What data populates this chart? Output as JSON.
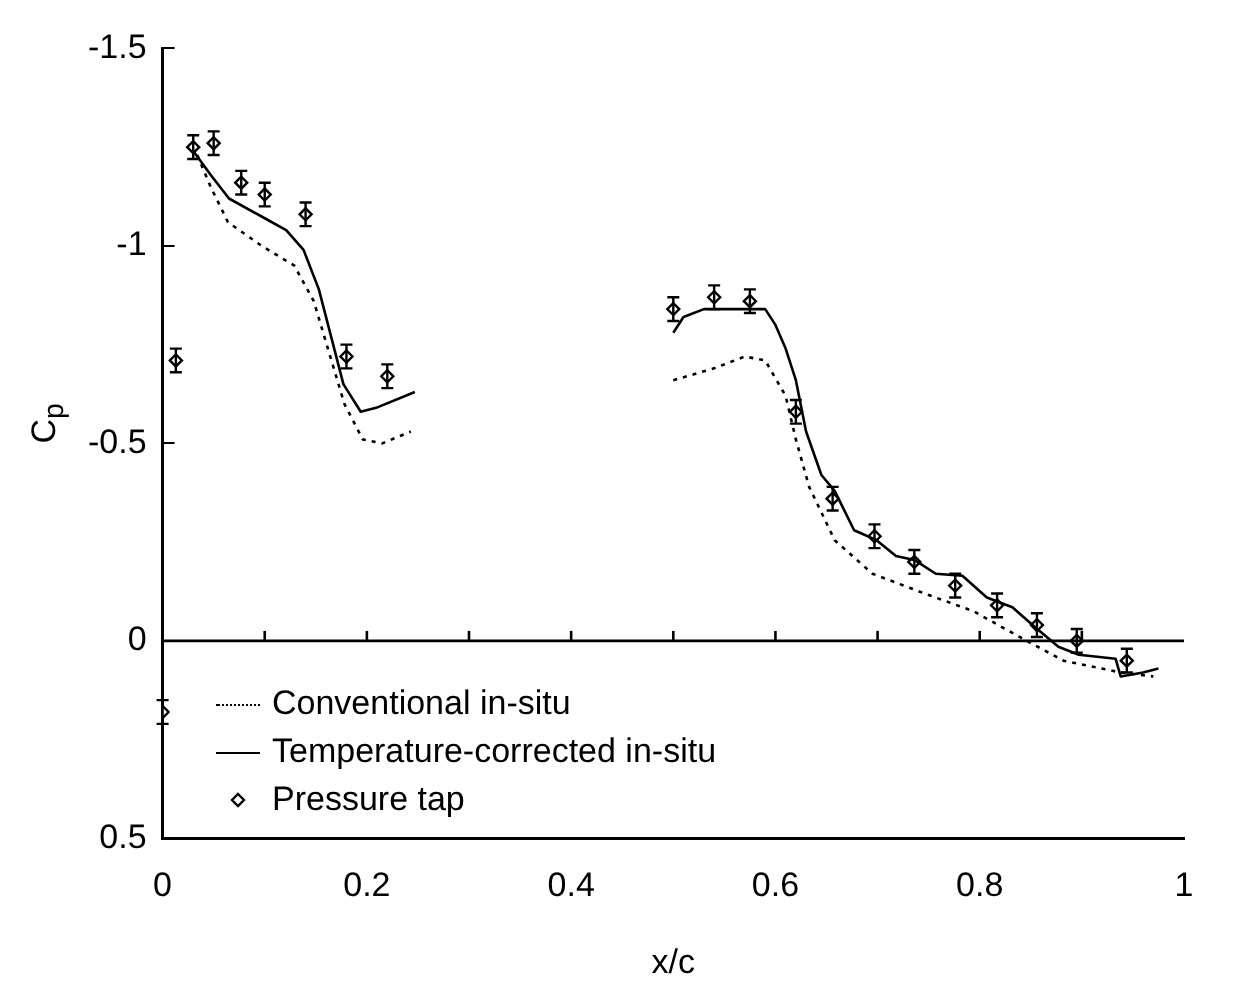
{
  "chart_data": {
    "type": "line",
    "xlabel": "x/c",
    "ylabel": "C$_{p}$",
    "xlim": [
      0,
      1
    ],
    "xticks": [
      0,
      0.2,
      0.4,
      0.6,
      0.8,
      1
    ],
    "ylim": [
      0.5,
      -1.5
    ],
    "yticks": [
      -1.5,
      -1,
      -0.5,
      0,
      0.5
    ],
    "grid": false,
    "legend": "bottom left",
    "ref_lines": [
      {
        "axis": "y",
        "value": 0
      }
    ],
    "series": [
      {
        "name": "Conventional in-situ",
        "line_style": "dotted",
        "marker": "none",
        "color": "#000000",
        "x": [
          0.034,
          0.047,
          0.064,
          0.097,
          0.129,
          0.148,
          0.163,
          0.178,
          0.196,
          0.215,
          0.243,
          null,
          0.5,
          0.54,
          0.57,
          0.59,
          0.61,
          0.62,
          0.633,
          0.658,
          0.695,
          0.746,
          0.794,
          0.839,
          0.882,
          0.938,
          0.97
        ],
        "values": [
          -1.23,
          -1.15,
          -1.06,
          -1.0,
          -0.95,
          -0.86,
          -0.73,
          -0.6,
          -0.51,
          -0.5,
          -0.53,
          null,
          -0.66,
          -0.69,
          -0.72,
          -0.71,
          -0.62,
          -0.51,
          -0.39,
          -0.255,
          -0.17,
          -0.12,
          -0.075,
          -0.01,
          0.05,
          0.08,
          0.09
        ]
      },
      {
        "name": "Temperature-corrected in-situ",
        "line_style": "solid",
        "marker": "none",
        "color": "#000000",
        "x": [
          0.03,
          0.047,
          0.065,
          0.1,
          0.121,
          0.138,
          0.153,
          0.166,
          0.177,
          0.194,
          0.209,
          0.247,
          null,
          0.5,
          0.51,
          0.53,
          0.56,
          0.59,
          0.6,
          0.61,
          0.62,
          0.63,
          0.645,
          0.658,
          0.677,
          0.699,
          0.718,
          0.736,
          0.757,
          0.783,
          0.807,
          0.832,
          0.854,
          0.877,
          0.897,
          0.933,
          0.938,
          0.96,
          0.975
        ],
        "values": [
          -1.24,
          -1.18,
          -1.12,
          -1.07,
          -1.04,
          -0.99,
          -0.89,
          -0.76,
          -0.65,
          -0.58,
          -0.59,
          -0.63,
          null,
          -0.78,
          -0.82,
          -0.84,
          -0.84,
          -0.84,
          -0.8,
          -0.74,
          -0.66,
          -0.53,
          -0.42,
          -0.38,
          -0.28,
          -0.255,
          -0.215,
          -0.205,
          -0.17,
          -0.165,
          -0.11,
          -0.085,
          -0.035,
          0.015,
          0.035,
          0.045,
          0.09,
          0.08,
          0.07
        ]
      },
      {
        "name": "Pressure tap",
        "type": "scatter",
        "marker": "diamond",
        "color": "#000000",
        "x": [
          0,
          0.013,
          0.03,
          0.05,
          0.077,
          0.1,
          0.14,
          0.18,
          0.22,
          0.5,
          0.54,
          0.575,
          0.62,
          0.656,
          0.697,
          0.736,
          0.776,
          0.817,
          0.856,
          0.895,
          0.944
        ],
        "values": [
          0.18,
          -0.71,
          -1.25,
          -1.26,
          -1.16,
          -1.13,
          -1.08,
          -0.72,
          -0.67,
          -0.84,
          -0.87,
          -0.86,
          -0.58,
          -0.36,
          -0.265,
          -0.2,
          -0.14,
          -0.09,
          -0.04,
          0.0,
          0.05
        ],
        "errors": [
          0.03,
          0.03,
          0.03,
          0.03,
          0.03,
          0.03,
          0.03,
          0.03,
          0.03,
          0.03,
          0.03,
          0.03,
          0.03,
          0.03,
          0.03,
          0.03,
          0.03,
          0.03,
          0.03,
          0.03,
          0.03
        ]
      }
    ]
  }
}
